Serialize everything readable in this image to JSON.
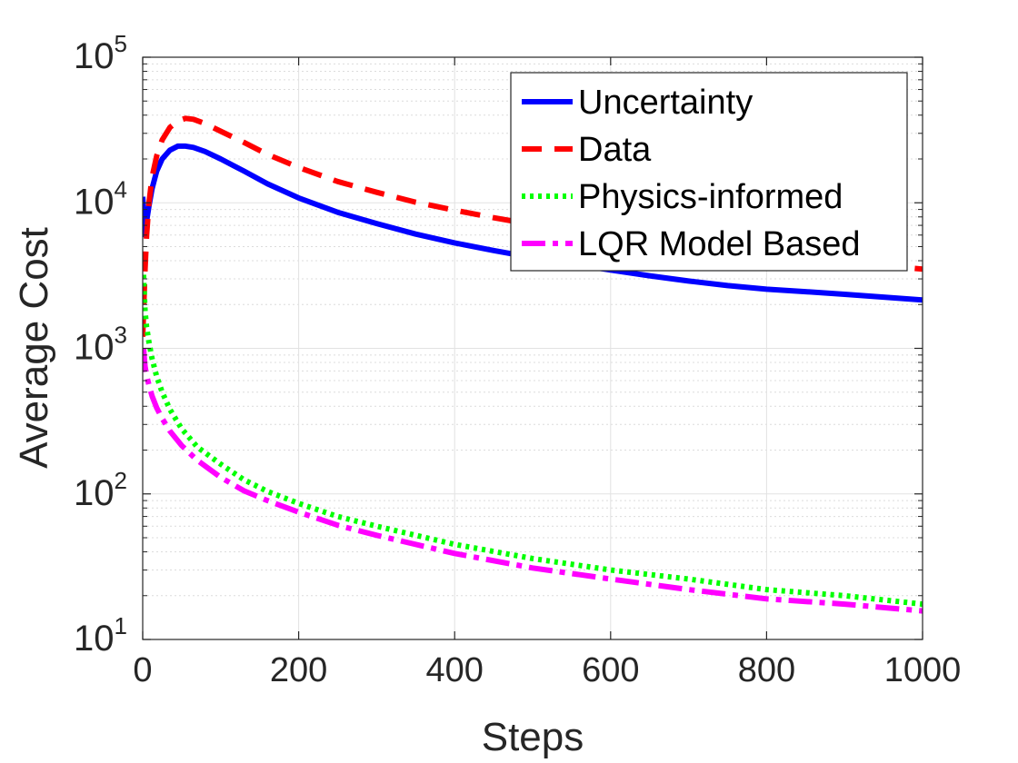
{
  "chart_data": {
    "type": "line",
    "xlabel": "Steps",
    "ylabel": "Average Cost",
    "xlim": [
      0,
      1000
    ],
    "ylim": [
      10,
      100000
    ],
    "yscale": "log",
    "grid": true,
    "minor_grid": true,
    "legend_position": "top-right",
    "x_ticks": [
      {
        "value": 0,
        "label": "0"
      },
      {
        "value": 200,
        "label": "200"
      },
      {
        "value": 400,
        "label": "400"
      },
      {
        "value": 600,
        "label": "600"
      },
      {
        "value": 800,
        "label": "800"
      },
      {
        "value": 1000,
        "label": "1000"
      }
    ],
    "y_ticks": [
      {
        "value": 10,
        "base": "10",
        "exp": "1"
      },
      {
        "value": 100,
        "base": "10",
        "exp": "2"
      },
      {
        "value": 1000,
        "base": "10",
        "exp": "3"
      },
      {
        "value": 10000,
        "base": "10",
        "exp": "4"
      },
      {
        "value": 100000,
        "base": "10",
        "exp": "5"
      }
    ],
    "series": [
      {
        "name": "Uncertainty",
        "color": "#0000ff",
        "style": "solid",
        "x": [
          0,
          3,
          5,
          8,
          12,
          18,
          25,
          35,
          45,
          55,
          65,
          80,
          100,
          130,
          160,
          200,
          250,
          300,
          350,
          400,
          450,
          500,
          550,
          600,
          650,
          700,
          750,
          800,
          850,
          900,
          950,
          1000
        ],
        "y": [
          11000,
          6000,
          7500,
          9500,
          12500,
          16500,
          20000,
          23000,
          24500,
          24500,
          24000,
          22500,
          20000,
          16500,
          13500,
          10800,
          8600,
          7200,
          6100,
          5300,
          4700,
          4200,
          3800,
          3450,
          3150,
          2900,
          2700,
          2550,
          2450,
          2350,
          2250,
          2150
        ]
      },
      {
        "name": "Data",
        "color": "#ff0000",
        "style": "dashed",
        "x": [
          0,
          3,
          5,
          8,
          12,
          18,
          25,
          35,
          45,
          55,
          65,
          80,
          100,
          130,
          160,
          200,
          250,
          300,
          350,
          400,
          450,
          500,
          550,
          600,
          650,
          700,
          750,
          800,
          850,
          900,
          950,
          1000
        ],
        "y": [
          1200,
          3500,
          6000,
          10000,
          15000,
          21000,
          27000,
          33000,
          36500,
          38000,
          37500,
          35000,
          31000,
          26000,
          21500,
          17500,
          14000,
          11800,
          10100,
          8900,
          7900,
          7100,
          6400,
          5900,
          5400,
          5000,
          4700,
          4400,
          4150,
          3900,
          3700,
          3500
        ]
      },
      {
        "name": "Physics-informed",
        "color": "#00ff00",
        "style": "dotted",
        "x": [
          1,
          3,
          5,
          8,
          12,
          18,
          25,
          35,
          50,
          70,
          100,
          130,
          160,
          200,
          250,
          300,
          400,
          500,
          600,
          700,
          800,
          900,
          1000
        ],
        "y": [
          3200,
          1800,
          1400,
          1100,
          850,
          640,
          500,
          380,
          280,
          210,
          160,
          125,
          104,
          86,
          70,
          60,
          45,
          36,
          30,
          26,
          22,
          20,
          17.5
        ]
      },
      {
        "name": "LQR Model Based",
        "color": "#ff00ff",
        "style": "dashdot",
        "x": [
          1,
          3,
          5,
          8,
          12,
          18,
          25,
          35,
          50,
          70,
          100,
          130,
          160,
          200,
          250,
          300,
          400,
          500,
          600,
          700,
          800,
          900,
          1000
        ],
        "y": [
          1000,
          750,
          650,
          560,
          470,
          390,
          330,
          270,
          215,
          170,
          130,
          105,
          90,
          75,
          61,
          52,
          39,
          31,
          26,
          22,
          19,
          17.5,
          15.7
        ]
      }
    ]
  }
}
